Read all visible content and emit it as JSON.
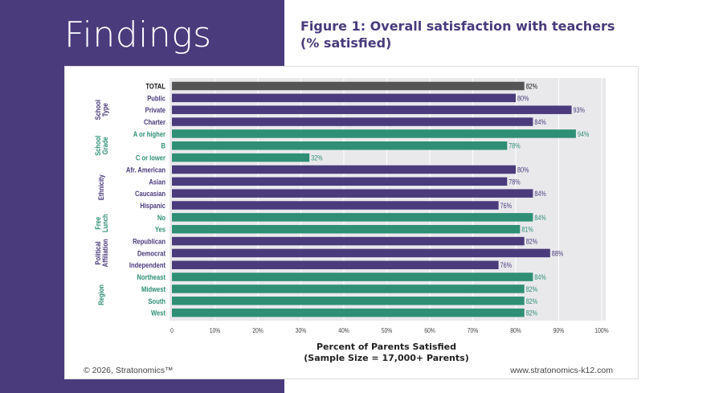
{
  "page_title": "Findings",
  "figure_title_line1": "Figure 1: Overall satisfaction with teachers",
  "figure_title_line2": "(% satisfied)",
  "footer": {
    "copyright": "© 2026, Stratonomics™",
    "website": "www.stratonomics-k12.com"
  },
  "colors": {
    "panel": "#4a3b7c",
    "purple": "#4a3b7c",
    "green": "#2e8f74",
    "total": "#555555",
    "plot_bg": "#e9e9ec"
  },
  "chart_data": {
    "type": "bar",
    "orientation": "horizontal",
    "xlabel_line1": "Percent of Parents Satisfied",
    "xlabel_line2": "(Sample Size = 17,000+ Parents)",
    "xlim": [
      0,
      100
    ],
    "xticks": [
      "0",
      "10%",
      "20%",
      "30%",
      "40%",
      "50%",
      "60%",
      "70%",
      "80%",
      "90%",
      "100%"
    ],
    "grid": true,
    "categories": [
      "TOTAL",
      "Public",
      "Private",
      "Charter",
      "A or higher",
      "B",
      "C or lower",
      "Afr. American",
      "Asian",
      "Caucasian",
      "Hispanic",
      "No",
      "Yes",
      "Republican",
      "Democrat",
      "Independent",
      "Northeast",
      "Midwest",
      "South",
      "West"
    ],
    "values": [
      82,
      80,
      93,
      84,
      94,
      78,
      32,
      80,
      78,
      84,
      76,
      84,
      81,
      82,
      88,
      76,
      84,
      82,
      82,
      82
    ],
    "value_labels": [
      "82%",
      "80%",
      "93%",
      "84%",
      "94%",
      "78%",
      "32%",
      "80%",
      "78%",
      "84%",
      "76%",
      "84%",
      "81%",
      "82%",
      "88%",
      "76%",
      "84%",
      "82%",
      "82%",
      "82%"
    ],
    "color_group": [
      "total",
      "purple",
      "purple",
      "purple",
      "green",
      "green",
      "green",
      "purple",
      "purple",
      "purple",
      "purple",
      "green",
      "green",
      "purple",
      "purple",
      "purple",
      "green",
      "green",
      "green",
      "green"
    ],
    "groups": [
      {
        "label_line1": "School",
        "label_line2": "Type",
        "first": 1,
        "last": 3,
        "color": "purple"
      },
      {
        "label_line1": "School",
        "label_line2": "Grade",
        "first": 4,
        "last": 6,
        "color": "green"
      },
      {
        "label_line1": "Ethnicity",
        "label_line2": "",
        "first": 7,
        "last": 10,
        "color": "purple"
      },
      {
        "label_line1": "Free",
        "label_line2": "Lunch",
        "first": 11,
        "last": 12,
        "color": "green"
      },
      {
        "label_line1": "Political",
        "label_line2": "Affiliation",
        "first": 13,
        "last": 15,
        "color": "purple"
      },
      {
        "label_line1": "Region",
        "label_line2": "",
        "first": 16,
        "last": 19,
        "color": "green"
      }
    ]
  }
}
